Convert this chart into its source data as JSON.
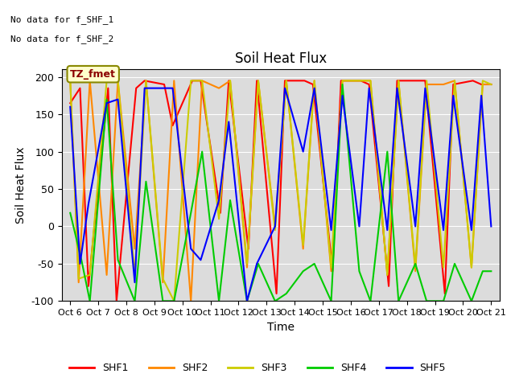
{
  "title": "Soil Heat Flux",
  "ylabel": "Soil Heat Flux",
  "xlabel": "Time",
  "annotation_line1": "No data for f_SHF_1",
  "annotation_line2": "No data for f_SHF_2",
  "box_label": "TZ_fmet",
  "ylim": [
    -100,
    210
  ],
  "colors": {
    "SHF1": "#ff0000",
    "SHF2": "#ff8800",
    "SHF3": "#cccc00",
    "SHF4": "#00cc00",
    "SHF5": "#0000ff"
  },
  "background_color": "#dcdcdc",
  "xtick_labels": [
    "Oct 6",
    "Oct 7",
    "Oct 8",
    "Oct 9",
    "Oct 10",
    "Oct 11",
    "Oct 12",
    "Oct 13",
    "Oct 14",
    "Oct 15",
    "Oct 16",
    "Oct 17",
    "Oct 18",
    "Oct 19",
    "Oct 20",
    "Oct 21"
  ],
  "SHF1_x": [
    0,
    0.35,
    0.65,
    1.35,
    1.65,
    2.35,
    2.65,
    3.35,
    3.65,
    4.35,
    4.65,
    5.35,
    5.65,
    6.35,
    6.65,
    7.35,
    7.65,
    8.35,
    8.65,
    9.35,
    9.65,
    10.35,
    10.65,
    11.35,
    11.65,
    12.35,
    12.65,
    13.35,
    13.65,
    14.35,
    14.65,
    15
  ],
  "SHF1_y": [
    165,
    185,
    -80,
    185,
    -100,
    185,
    195,
    190,
    135,
    195,
    195,
    18,
    195,
    -30,
    195,
    -90,
    195,
    195,
    190,
    -60,
    195,
    195,
    190,
    -80,
    195,
    195,
    195,
    -90,
    190,
    195,
    190,
    190
  ],
  "SHF2_x": [
    0,
    0.3,
    0.7,
    1.3,
    1.7,
    2.3,
    2.7,
    3.3,
    3.7,
    4.3,
    4.7,
    5.3,
    5.7,
    6.3,
    6.7,
    7.3,
    7.7,
    8.3,
    8.7,
    9.3,
    9.7,
    10.3,
    10.7,
    11.3,
    11.7,
    12.3,
    12.7,
    13.3,
    13.7,
    14.3,
    14.7,
    15
  ],
  "SHF2_y": [
    195,
    -75,
    195,
    -65,
    195,
    -30,
    195,
    -75,
    195,
    -100,
    195,
    185,
    195,
    -55,
    195,
    0,
    195,
    -30,
    195,
    -60,
    195,
    195,
    195,
    -65,
    195,
    -60,
    190,
    190,
    195,
    -55,
    190,
    190
  ],
  "SHF3_x": [
    0,
    0.3,
    0.7,
    1.3,
    1.7,
    2.3,
    2.7,
    3.3,
    3.7,
    4.3,
    4.7,
    5.3,
    5.7,
    6.3,
    6.7,
    7.3,
    7.7,
    8.3,
    8.7,
    9.3,
    9.7,
    10.3,
    10.7,
    11.3,
    11.7,
    12.3,
    12.7,
    13.3,
    13.7,
    14.3,
    14.7,
    15
  ],
  "SHF3_y": [
    195,
    -70,
    -65,
    195,
    195,
    -65,
    195,
    -70,
    -100,
    195,
    195,
    10,
    195,
    -50,
    195,
    -5,
    195,
    -25,
    195,
    -55,
    195,
    195,
    195,
    -65,
    195,
    -55,
    195,
    -55,
    195,
    -55,
    195,
    190
  ],
  "SHF4_x": [
    0,
    0.4,
    0.7,
    1.3,
    1.7,
    2.3,
    2.7,
    3.3,
    3.7,
    4.3,
    4.7,
    5.3,
    5.7,
    6.3,
    6.7,
    7.3,
    7.7,
    8.3,
    8.7,
    9.3,
    9.7,
    10.3,
    10.7,
    11.3,
    11.7,
    12.3,
    12.7,
    13.3,
    13.7,
    14.3,
    14.7,
    15
  ],
  "SHF4_y": [
    18,
    -45,
    -100,
    170,
    -45,
    -100,
    60,
    -100,
    -100,
    18,
    100,
    -100,
    35,
    -100,
    -50,
    -100,
    -90,
    -60,
    -50,
    -100,
    190,
    -60,
    -100,
    100,
    -100,
    -50,
    -100,
    -100,
    -50,
    -100,
    -60,
    -60
  ],
  "SHF5_x": [
    0,
    0.35,
    0.65,
    1.3,
    1.7,
    2.3,
    2.65,
    3.3,
    3.65,
    4.3,
    4.65,
    5.3,
    5.65,
    6.3,
    6.65,
    7.3,
    7.65,
    8.3,
    8.7,
    9.3,
    9.7,
    10.3,
    10.65,
    11.3,
    11.65,
    12.3,
    12.65,
    13.3,
    13.65,
    14.3,
    14.65,
    15
  ],
  "SHF5_y": [
    160,
    -50,
    30,
    165,
    170,
    -75,
    185,
    185,
    185,
    -30,
    -45,
    35,
    140,
    -100,
    -50,
    0,
    185,
    100,
    185,
    -5,
    175,
    0,
    185,
    -5,
    185,
    0,
    185,
    -5,
    175,
    -5,
    175,
    0
  ]
}
